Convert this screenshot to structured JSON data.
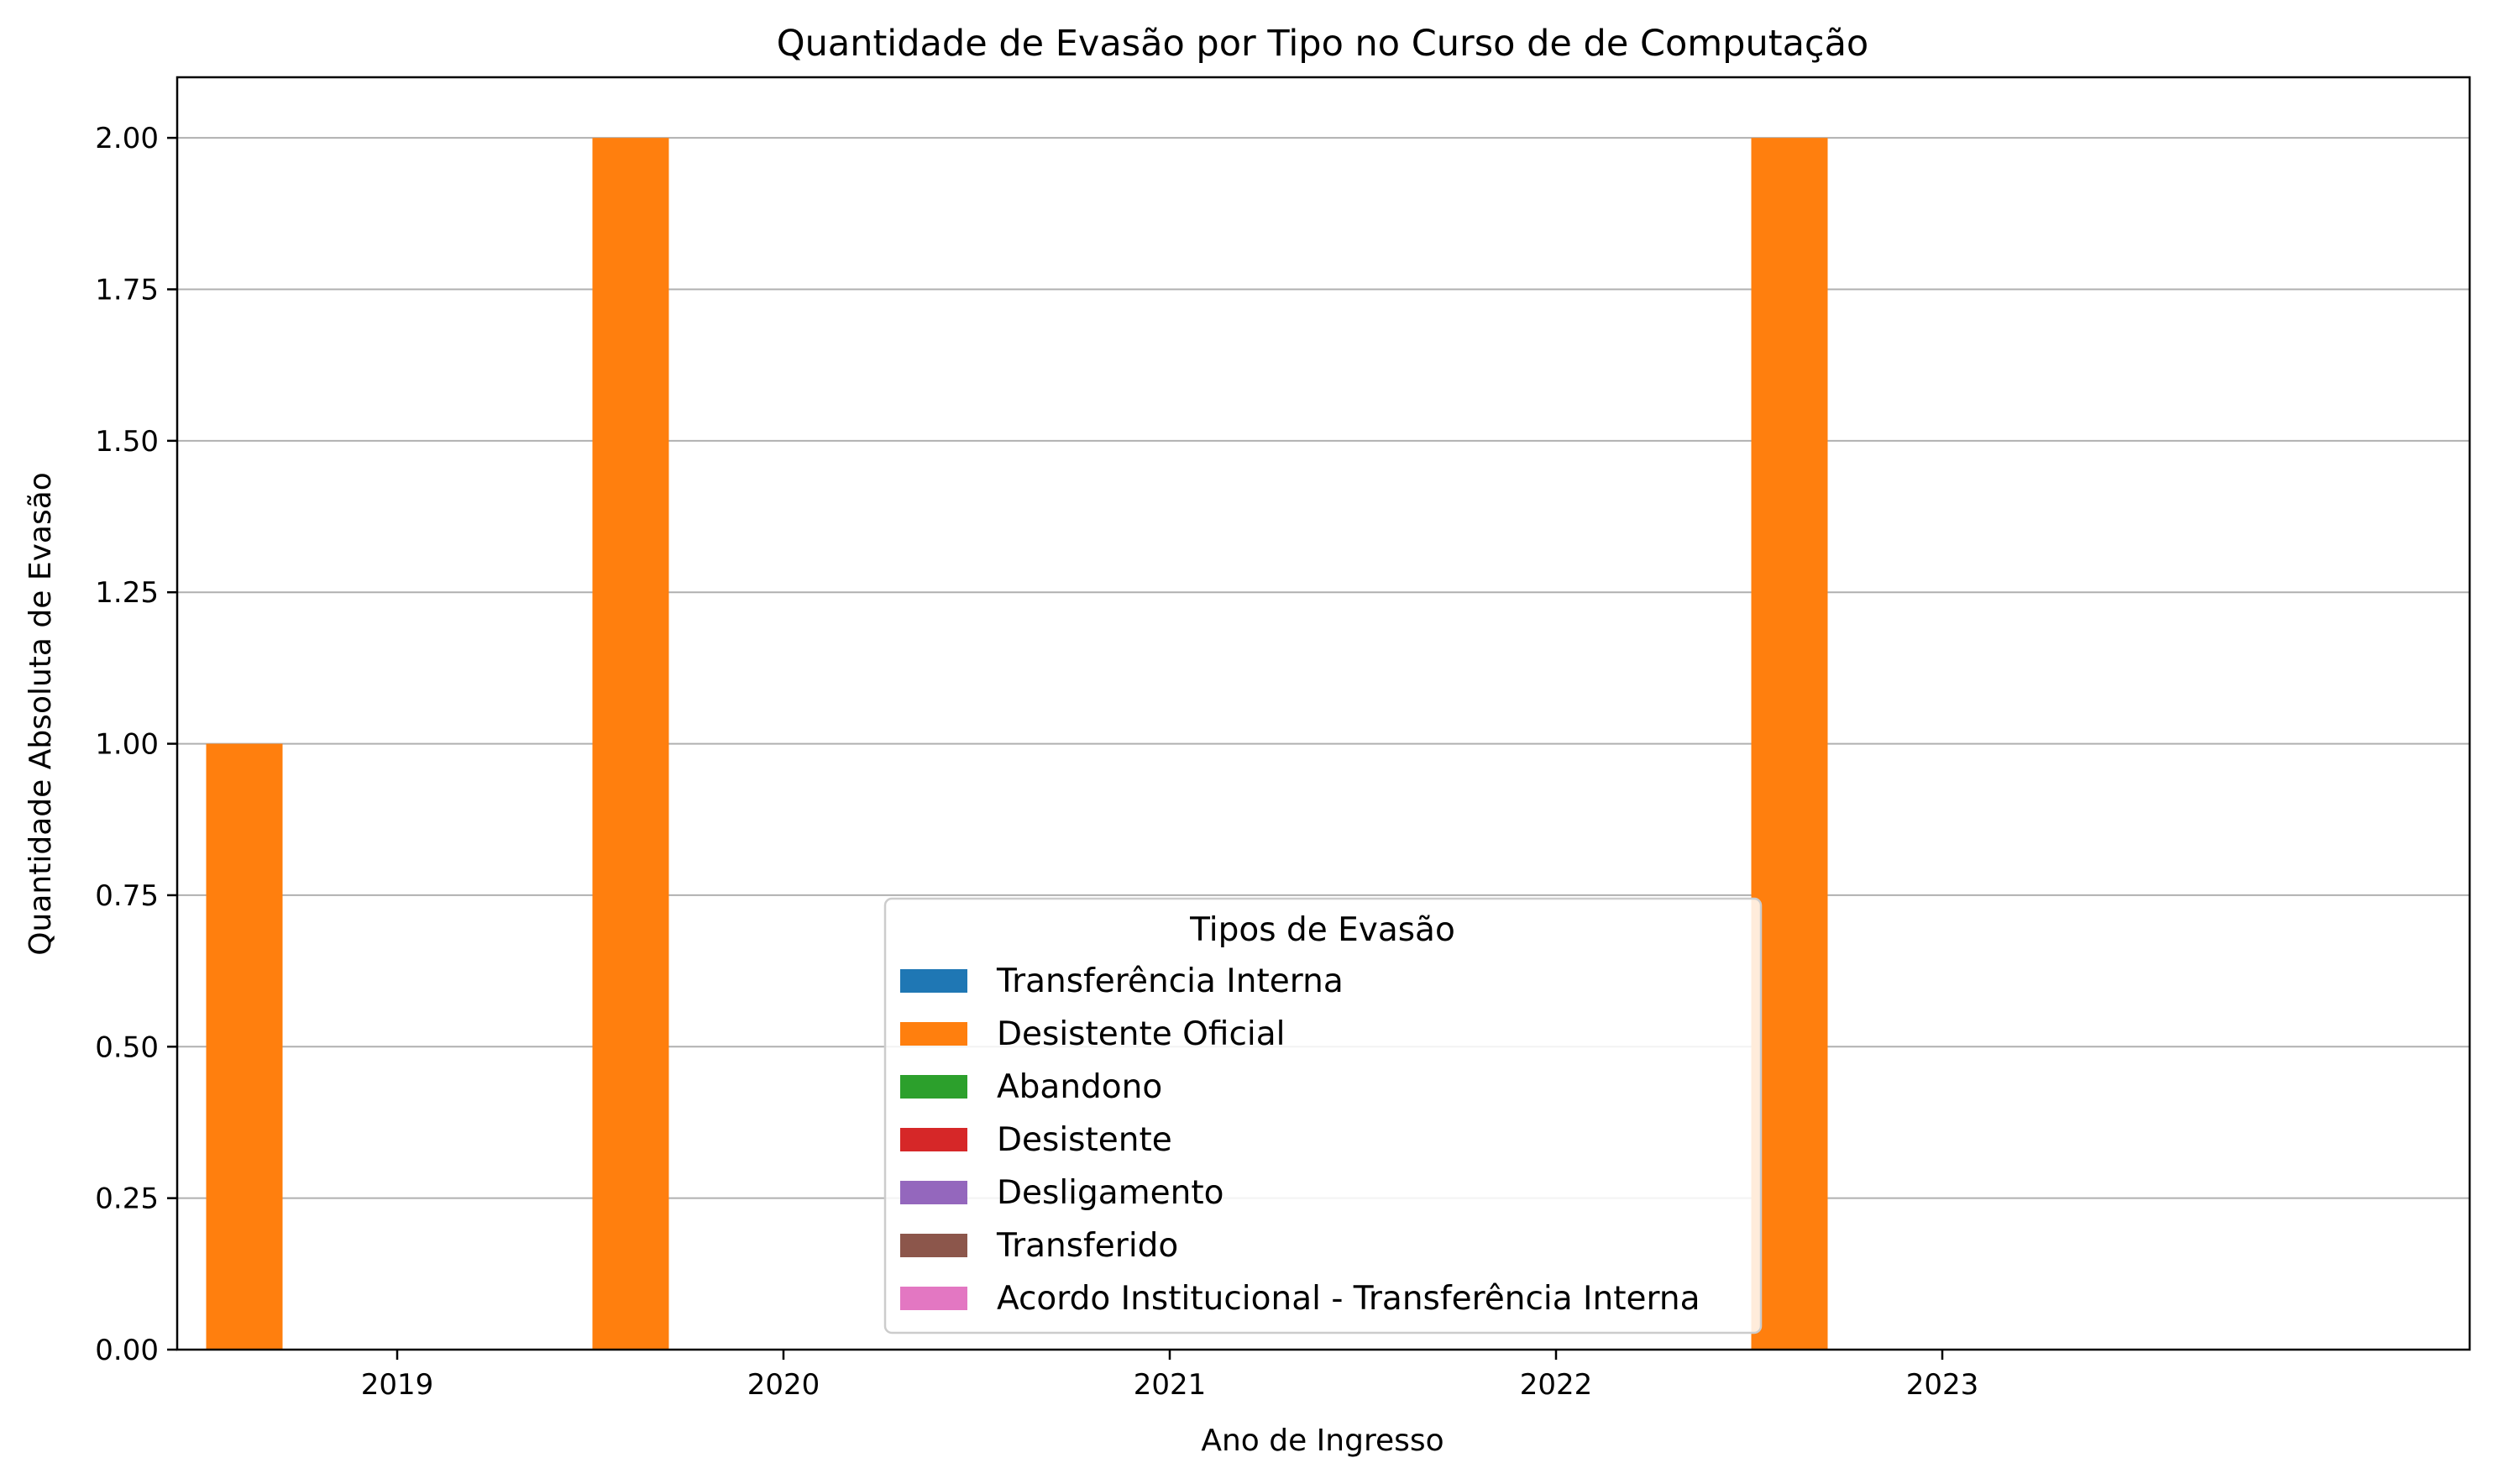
{
  "chart_data": {
    "type": "bar",
    "title": "Quantidade de Evasão por Tipo no Curso de de Computação",
    "xlabel": "Ano de Ingresso",
    "ylabel": "Quantidade Absoluta de Evasão",
    "categories": [
      "2019",
      "2020",
      "2021",
      "2022",
      "2023"
    ],
    "ylim": [
      0,
      2.1
    ],
    "yticks": [
      "0.00",
      "0.25",
      "0.50",
      "0.75",
      "1.00",
      "1.25",
      "1.50",
      "1.75",
      "2.00"
    ],
    "grid": "horizontal",
    "legend": {
      "title": "Tipos de Evasão",
      "placement": "lower-center"
    },
    "series": [
      {
        "name": "Transferência Interna",
        "color": "#1f77b4",
        "values": [
          0,
          0,
          0,
          0,
          0
        ]
      },
      {
        "name": "Desistente Oficial",
        "color": "#ff7f0e",
        "values": [
          1,
          2,
          0,
          0,
          2
        ]
      },
      {
        "name": "Abandono",
        "color": "#2ca02c",
        "values": [
          0,
          0,
          0,
          0,
          0
        ]
      },
      {
        "name": "Desistente",
        "color": "#d62728",
        "values": [
          0,
          0,
          0,
          0,
          0
        ]
      },
      {
        "name": "Desligamento",
        "color": "#9467bd",
        "values": [
          0,
          0,
          0,
          0,
          0
        ]
      },
      {
        "name": "Transferido",
        "color": "#8c564b",
        "values": [
          0,
          0,
          0,
          0,
          0
        ]
      },
      {
        "name": "Acordo Institucional - Transferência Interna",
        "color": "#e377c2",
        "values": [
          0,
          0,
          0,
          0,
          0
        ]
      }
    ]
  }
}
